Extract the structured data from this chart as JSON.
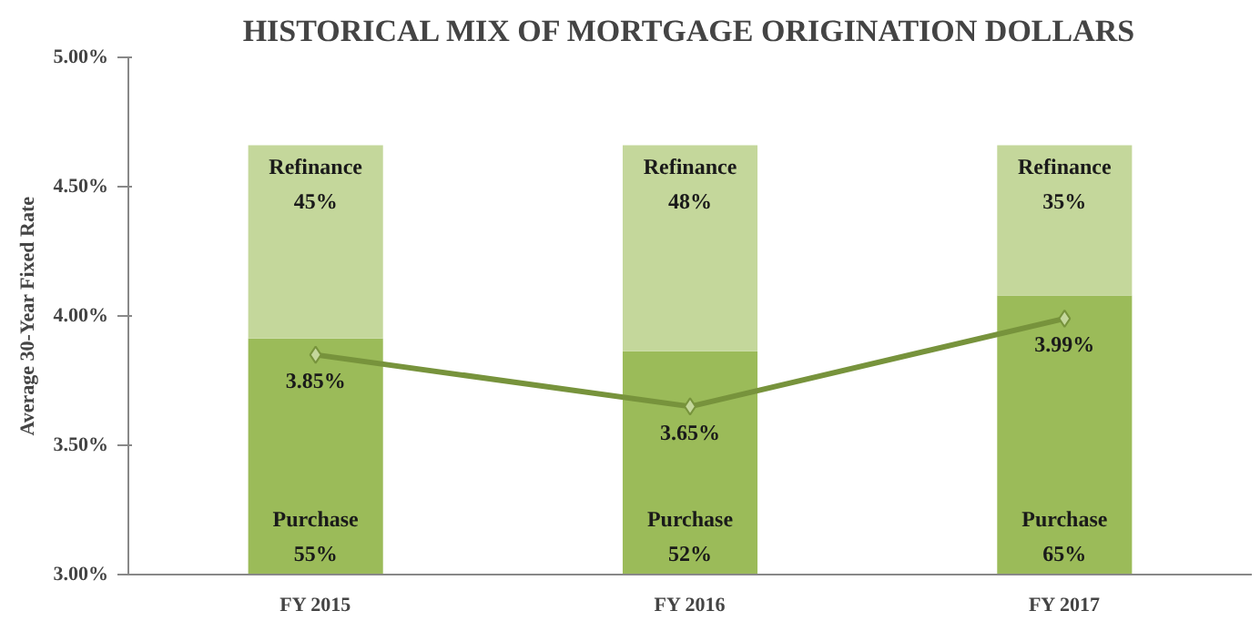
{
  "chart_data": {
    "type": "bar",
    "title": "HISTORICAL MIX OF MORTGAGE ORIGINATION DOLLARS",
    "ylabel": "Average 30-Year Fixed Rate",
    "categories": [
      "FY 2015",
      "FY 2016",
      "FY 2017"
    ],
    "stacked": true,
    "series": [
      {
        "name": "Purchase",
        "color": "#9bbb59",
        "values": [
          55,
          52,
          65
        ],
        "value_labels": [
          "55%",
          "52%",
          "65%"
        ],
        "axis": "y2"
      },
      {
        "name": "Refinance",
        "color": "#c4d79b",
        "values": [
          45,
          48,
          35
        ],
        "value_labels": [
          "45%",
          "48%",
          "35%"
        ],
        "axis": "y2"
      },
      {
        "type": "line",
        "color": "#77933c",
        "values": [
          3.85,
          3.65,
          3.99
        ],
        "value_labels": [
          "3.85%",
          "3.65%",
          "3.99%"
        ],
        "marker": "diamond"
      }
    ],
    "ylim": [
      3.0,
      5.0
    ],
    "yticks": [
      {
        "value": 3.0,
        "label": "3.00%"
      },
      {
        "value": 3.5,
        "label": "3.50%"
      },
      {
        "value": 4.0,
        "label": "4.00%"
      },
      {
        "value": 4.5,
        "label": "4.50%"
      },
      {
        "value": 5.0,
        "label": "5.00%"
      }
    ],
    "grid": false
  }
}
